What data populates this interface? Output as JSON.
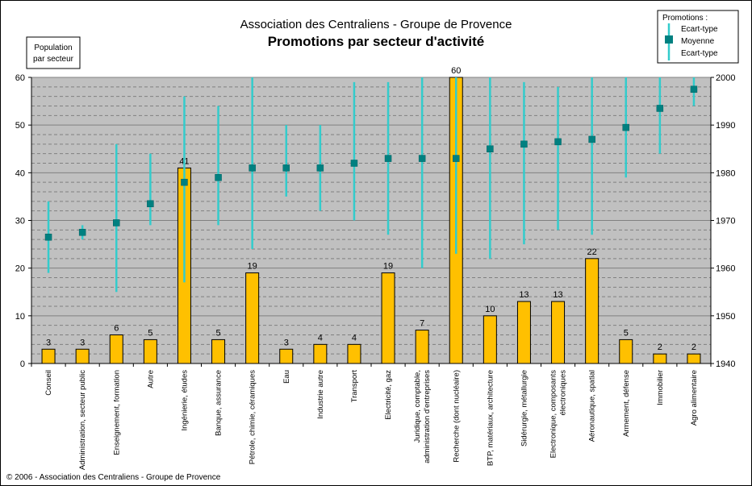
{
  "header": {
    "title": "Association des Centraliens - Groupe de Provence",
    "subtitle": "Promotions par secteur d'activité"
  },
  "left_axis_label": [
    "Population",
    "par secteur"
  ],
  "legend": {
    "title": "Promotions :",
    "items": [
      "Ecart-type",
      "Moyenne",
      "Ecart-type"
    ]
  },
  "footer": "© 2006 - Association des Centraliens - Groupe de Provence",
  "colors": {
    "bar": "#FFC000",
    "bar_stroke": "#000000",
    "errbar": "#33CCCC",
    "mean_marker": "#008080",
    "plot_bg": "#C0C0C0",
    "grid": "#808080"
  },
  "chart_data": {
    "type": "bar",
    "categories": [
      [
        "Conseil"
      ],
      [
        "Administration, secteur public"
      ],
      [
        "Enseignement, formation"
      ],
      [
        "Autre"
      ],
      [
        "Ingénierie, études"
      ],
      [
        "Banque, assurance"
      ],
      [
        "Pétrole, chimie, céramiques"
      ],
      [
        "Eau"
      ],
      [
        "Industrie autre"
      ],
      [
        "Transport"
      ],
      [
        "Electricité, gaz"
      ],
      [
        "Juridique, comptable,",
        "administration d'entreprises"
      ],
      [
        "Recherche (dont nucléaire)"
      ],
      [
        "BTP, matériaux, architecture"
      ],
      [
        "Sidérurgie, métallurgie"
      ],
      [
        "Electronique, composants",
        "électroniques"
      ],
      [
        "Aéronautique, spatial"
      ],
      [
        "Armement, défense"
      ],
      [
        "Immobilier"
      ],
      [
        "Agro alimentaire"
      ]
    ],
    "values": [
      3,
      3,
      6,
      5,
      41,
      5,
      19,
      3,
      4,
      4,
      19,
      7,
      60,
      10,
      13,
      13,
      22,
      5,
      2,
      2
    ],
    "y_left": {
      "ylim": [
        0,
        60
      ],
      "ticks": [
        0,
        10,
        20,
        30,
        40,
        50,
        60
      ]
    },
    "y_right": {
      "ylim": [
        1940,
        2000
      ],
      "ticks": [
        1940,
        1950,
        1960,
        1970,
        1980,
        1990,
        2000
      ]
    },
    "promotions": {
      "mean": [
        1966.5,
        1967.5,
        1969.5,
        1973.5,
        1978,
        1979,
        1981,
        1981,
        1981,
        1982,
        1983,
        1983,
        1983,
        1985,
        1986,
        1986.5,
        1987,
        1989.5,
        1993.5,
        1997.5
      ],
      "low": [
        1959,
        1966,
        1955,
        1969,
        1957,
        1969,
        1964,
        1975,
        1972,
        1970,
        1967,
        1960,
        1963,
        1962,
        1965,
        1968,
        1967,
        1979,
        1984,
        1994
      ],
      "high": [
        1974,
        1969,
        1986,
        1984,
        1996,
        1994,
        2000,
        1990,
        1990,
        1999,
        1999,
        2000,
        2000,
        2000,
        1999,
        1998,
        2000,
        2000,
        2000,
        2000
      ]
    },
    "grid": true,
    "legend_position": "top-right"
  }
}
